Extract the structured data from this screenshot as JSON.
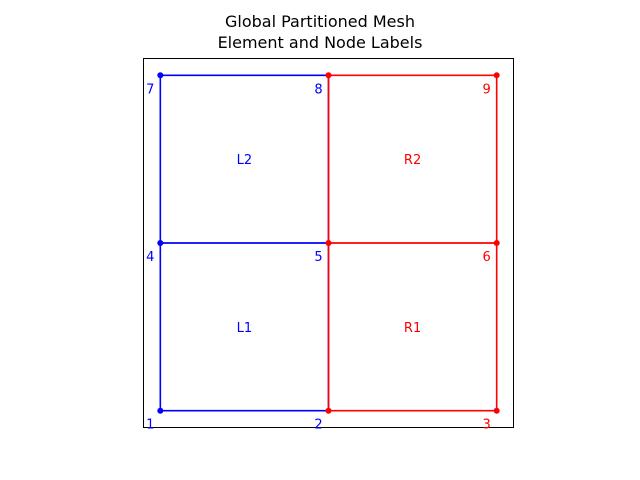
{
  "figure": {
    "title_line1": "Global Partitioned Mesh",
    "title_line2": "Element and Node Labels"
  },
  "colors": {
    "left_partition": "#0000ff",
    "right_partition": "#ff0000",
    "frame": "#000000",
    "background": "#ffffff"
  },
  "mesh": {
    "domain": {
      "xmin": -0.1,
      "xmax": 2.1,
      "ymin": -0.1,
      "ymax": 2.1
    },
    "nodes": [
      {
        "id": "1",
        "x": 0,
        "y": 0,
        "partition": "left"
      },
      {
        "id": "2",
        "x": 1,
        "y": 0,
        "partition": "left"
      },
      {
        "id": "3",
        "x": 2,
        "y": 0,
        "partition": "right"
      },
      {
        "id": "4",
        "x": 0,
        "y": 1,
        "partition": "left"
      },
      {
        "id": "5",
        "x": 1,
        "y": 1,
        "partition": "left"
      },
      {
        "id": "6",
        "x": 2,
        "y": 1,
        "partition": "right"
      },
      {
        "id": "7",
        "x": 0,
        "y": 2,
        "partition": "left"
      },
      {
        "id": "8",
        "x": 1,
        "y": 2,
        "partition": "left"
      },
      {
        "id": "9",
        "x": 2,
        "y": 2,
        "partition": "right"
      }
    ],
    "elements": [
      {
        "label": "L1",
        "nodes": [
          "1",
          "2",
          "5",
          "4"
        ],
        "partition": "left"
      },
      {
        "label": "L2",
        "nodes": [
          "4",
          "5",
          "8",
          "7"
        ],
        "partition": "left"
      },
      {
        "label": "R1",
        "nodes": [
          "2",
          "3",
          "6",
          "5"
        ],
        "partition": "right"
      },
      {
        "label": "R2",
        "nodes": [
          "5",
          "6",
          "9",
          "8"
        ],
        "partition": "right"
      }
    ]
  }
}
